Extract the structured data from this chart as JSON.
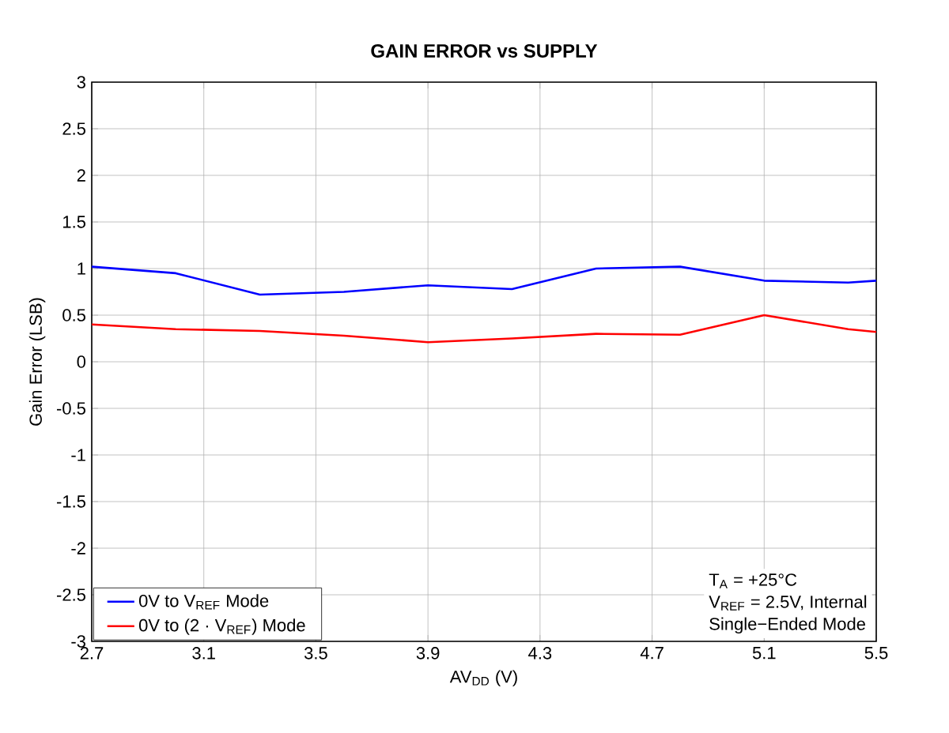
{
  "chart_data": {
    "type": "line",
    "title": "GAIN ERROR vs SUPPLY",
    "xlabel": "AV$_{DD}$ (V)",
    "ylabel": "Gain Error (LSB)",
    "xlim": [
      2.7,
      5.5
    ],
    "ylim": [
      -3,
      3
    ],
    "xticks": [
      2.7,
      3.1,
      3.5,
      3.9,
      4.3,
      4.7,
      5.1,
      5.5
    ],
    "yticks": [
      -3,
      -2.5,
      -2,
      -1.5,
      -1,
      -0.5,
      0,
      0.5,
      1,
      1.5,
      2,
      2.5,
      3
    ],
    "grid": true,
    "legend": "bottom left",
    "marker": "none",
    "line_style": "solid",
    "annotations": [
      "T$_{A}$ = +25°C",
      "V$_{REF}$ = 2.5V, Internal",
      "Single−Ended Mode"
    ],
    "series": [
      {
        "name": "0V to V$_{REF}$ Mode",
        "color": "#0000ff",
        "x": [
          2.7,
          3.0,
          3.3,
          3.6,
          3.9,
          4.2,
          4.5,
          4.8,
          5.1,
          5.4,
          5.5
        ],
        "values": [
          1.02,
          0.95,
          0.72,
          0.75,
          0.82,
          0.78,
          1.0,
          1.02,
          0.87,
          0.85,
          0.87
        ]
      },
      {
        "name": "0V to (2 · V$_{REF}$) Mode",
        "color": "#ff0000",
        "x": [
          2.7,
          3.0,
          3.3,
          3.6,
          3.9,
          4.2,
          4.5,
          4.8,
          5.1,
          5.4,
          5.5
        ],
        "values": [
          0.4,
          0.35,
          0.33,
          0.28,
          0.21,
          0.25,
          0.3,
          0.29,
          0.5,
          0.35,
          0.32
        ]
      }
    ]
  }
}
